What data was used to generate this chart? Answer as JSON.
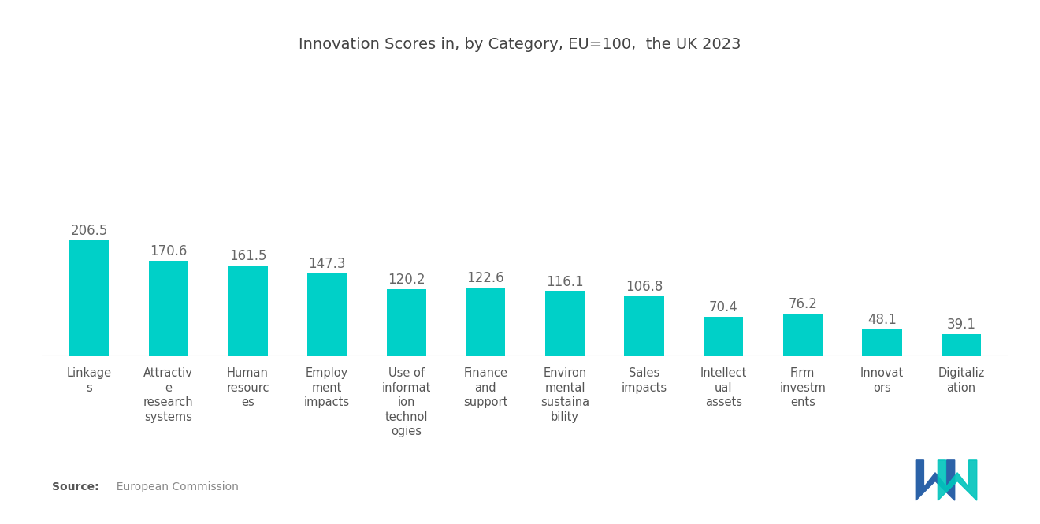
{
  "title": "Innovation Scores in, by Category, EU=100,  the UK 2023",
  "categories": [
    "Linkage\ns",
    "Attractiv\ne\nresearch\nsystems",
    "Human\nresourc\nes",
    "Employ\nment\nimpacts",
    "Use of\ninformat\nion\ntechnol\nogies",
    "Finance\nand\nsupport",
    "Environ\nmental\nsustaina\nbility",
    "Sales\nimpacts",
    "Intellect\nual\nassets",
    "Firm\ninvestm\nents",
    "Innovat\nors",
    "Digitaliz\nation"
  ],
  "values": [
    206.5,
    170.6,
    161.5,
    147.3,
    120.2,
    122.6,
    116.1,
    106.8,
    70.4,
    76.2,
    48.1,
    39.1
  ],
  "bar_color": "#00D0C8",
  "value_color": "#666666",
  "title_fontsize": 14,
  "label_fontsize": 10.5,
  "value_fontsize": 12,
  "source_bold": "Source:",
  "source_normal": "  European Commission",
  "background_color": "#ffffff",
  "ylim": [
    0,
    420
  ],
  "bar_width": 0.5,
  "logo_blue": "#2B62A8",
  "logo_teal": "#00C4BC"
}
